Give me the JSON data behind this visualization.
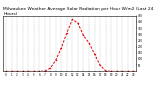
{
  "title": "Milwaukee Weather Average Solar Radiation per Hour W/m2 (Last 24 Hours)",
  "hours": [
    0,
    1,
    2,
    3,
    4,
    5,
    6,
    7,
    8,
    9,
    10,
    11,
    12,
    13,
    14,
    15,
    16,
    17,
    18,
    19,
    20,
    21,
    22,
    23
  ],
  "values": [
    0,
    0,
    0,
    0,
    0,
    0,
    0,
    2,
    25,
    90,
    190,
    310,
    420,
    390,
    290,
    230,
    140,
    50,
    5,
    0,
    0,
    0,
    0,
    0
  ],
  "line_color": "#dd0000",
  "bg_color": "#ffffff",
  "grid_color": "#999999",
  "ylim": [
    0,
    450
  ],
  "ytick_vals": [
    50,
    100,
    150,
    200,
    250,
    300,
    350,
    400,
    450
  ],
  "title_fontsize": 3.2,
  "tick_fontsize": 2.0
}
